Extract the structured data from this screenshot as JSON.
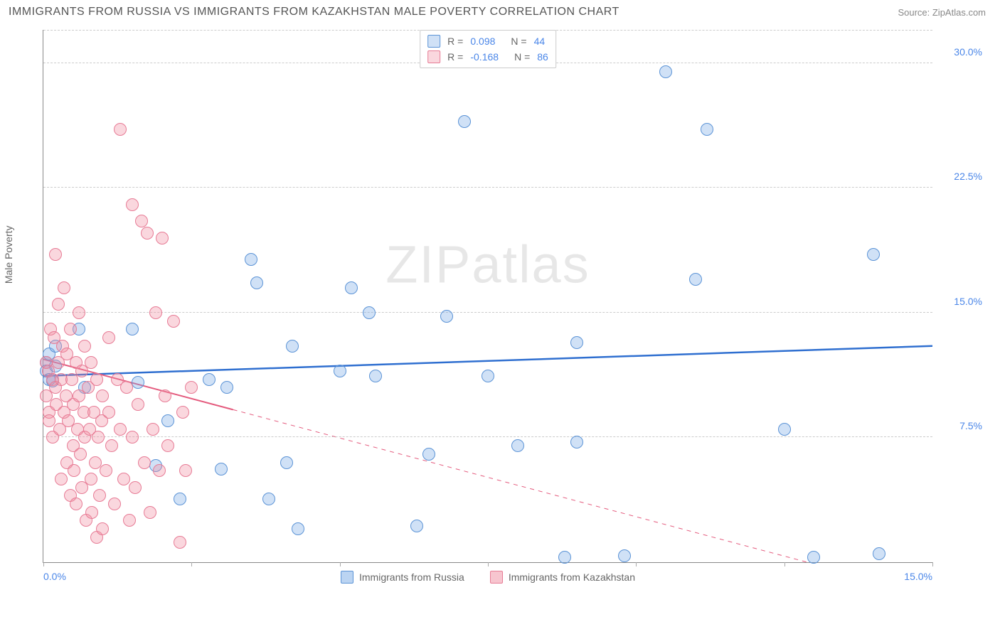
{
  "title": "IMMIGRANTS FROM RUSSIA VS IMMIGRANTS FROM KAZAKHSTAN MALE POVERTY CORRELATION CHART",
  "source": "Source: ZipAtlas.com",
  "y_axis_label": "Male Poverty",
  "watermark": "ZIPatlas",
  "chart": {
    "type": "scatter",
    "xlim": [
      0,
      15
    ],
    "ylim": [
      0,
      32
    ],
    "yticks": [
      7.5,
      15.0,
      22.5,
      30.0
    ],
    "ytick_labels": [
      "7.5%",
      "15.0%",
      "22.5%",
      "30.0%"
    ],
    "xticks": [
      0,
      2.5,
      5,
      7.5,
      10,
      12.5,
      15
    ],
    "xtick_labels_shown": {
      "0": "0.0%",
      "15": "15.0%"
    },
    "background_color": "#ffffff",
    "grid_color": "#cccccc",
    "marker_radius": 9,
    "series": [
      {
        "name": "Immigrants from Russia",
        "color_fill": "rgba(120,170,230,0.35)",
        "color_stroke": "#5b93d6",
        "r": 0.098,
        "n": 44,
        "trend": {
          "y_at_x0": 11.2,
          "y_at_xmax": 13.0,
          "color": "#2f6fd0",
          "width": 2.5,
          "dash_after_x": null
        },
        "points": [
          [
            0.05,
            12.0
          ],
          [
            0.05,
            11.5
          ],
          [
            0.1,
            12.5
          ],
          [
            0.1,
            11.0
          ],
          [
            0.15,
            10.9
          ],
          [
            0.2,
            13.0
          ],
          [
            0.2,
            11.8
          ],
          [
            0.6,
            14.0
          ],
          [
            0.7,
            10.5
          ],
          [
            1.5,
            14.0
          ],
          [
            1.6,
            10.8
          ],
          [
            1.9,
            5.8
          ],
          [
            2.1,
            8.5
          ],
          [
            2.3,
            3.8
          ],
          [
            2.8,
            11.0
          ],
          [
            3.0,
            5.6
          ],
          [
            3.1,
            10.5
          ],
          [
            3.5,
            18.2
          ],
          [
            3.6,
            16.8
          ],
          [
            3.8,
            3.8
          ],
          [
            4.1,
            6.0
          ],
          [
            4.2,
            13.0
          ],
          [
            4.3,
            2.0
          ],
          [
            5.0,
            11.5
          ],
          [
            5.2,
            16.5
          ],
          [
            5.5,
            15.0
          ],
          [
            5.6,
            11.2
          ],
          [
            6.3,
            2.2
          ],
          [
            6.5,
            6.5
          ],
          [
            6.8,
            14.8
          ],
          [
            7.1,
            26.5
          ],
          [
            7.5,
            11.2
          ],
          [
            8.0,
            7.0
          ],
          [
            8.8,
            0.3
          ],
          [
            9.0,
            7.2
          ],
          [
            9.0,
            13.2
          ],
          [
            9.8,
            0.4
          ],
          [
            10.5,
            29.5
          ],
          [
            11.0,
            17.0
          ],
          [
            11.2,
            26.0
          ],
          [
            12.5,
            8.0
          ],
          [
            13.0,
            0.3
          ],
          [
            14.0,
            18.5
          ],
          [
            14.1,
            0.5
          ]
        ]
      },
      {
        "name": "Immigrants from Kazakhstan",
        "color_fill": "rgba(240,140,160,0.35)",
        "color_stroke": "#e77b95",
        "r": -0.168,
        "n": 86,
        "trend": {
          "y_at_x0": 12.2,
          "y_at_xmax": -2.0,
          "color": "#e45a7d",
          "width": 2,
          "dash_after_x": 3.2
        },
        "points": [
          [
            0.05,
            12.0
          ],
          [
            0.05,
            10.0
          ],
          [
            0.08,
            11.5
          ],
          [
            0.1,
            9.0
          ],
          [
            0.1,
            8.5
          ],
          [
            0.12,
            14.0
          ],
          [
            0.15,
            11.0
          ],
          [
            0.15,
            7.5
          ],
          [
            0.18,
            13.5
          ],
          [
            0.2,
            18.5
          ],
          [
            0.2,
            10.5
          ],
          [
            0.22,
            9.5
          ],
          [
            0.25,
            12.0
          ],
          [
            0.25,
            15.5
          ],
          [
            0.28,
            8.0
          ],
          [
            0.3,
            11.0
          ],
          [
            0.3,
            5.0
          ],
          [
            0.32,
            13.0
          ],
          [
            0.35,
            9.0
          ],
          [
            0.35,
            16.5
          ],
          [
            0.38,
            10.0
          ],
          [
            0.4,
            6.0
          ],
          [
            0.4,
            12.5
          ],
          [
            0.42,
            8.5
          ],
          [
            0.45,
            14.0
          ],
          [
            0.45,
            4.0
          ],
          [
            0.48,
            11.0
          ],
          [
            0.5,
            9.5
          ],
          [
            0.5,
            7.0
          ],
          [
            0.52,
            5.5
          ],
          [
            0.55,
            12.0
          ],
          [
            0.55,
            3.5
          ],
          [
            0.58,
            8.0
          ],
          [
            0.6,
            10.0
          ],
          [
            0.6,
            15.0
          ],
          [
            0.62,
            6.5
          ],
          [
            0.65,
            11.5
          ],
          [
            0.65,
            4.5
          ],
          [
            0.68,
            9.0
          ],
          [
            0.7,
            13.0
          ],
          [
            0.7,
            7.5
          ],
          [
            0.72,
            2.5
          ],
          [
            0.75,
            10.5
          ],
          [
            0.78,
            8.0
          ],
          [
            0.8,
            5.0
          ],
          [
            0.8,
            12.0
          ],
          [
            0.82,
            3.0
          ],
          [
            0.85,
            9.0
          ],
          [
            0.88,
            6.0
          ],
          [
            0.9,
            11.0
          ],
          [
            0.9,
            1.5
          ],
          [
            0.92,
            7.5
          ],
          [
            0.95,
            4.0
          ],
          [
            0.98,
            8.5
          ],
          [
            1.0,
            10.0
          ],
          [
            1.0,
            2.0
          ],
          [
            1.05,
            5.5
          ],
          [
            1.1,
            9.0
          ],
          [
            1.1,
            13.5
          ],
          [
            1.15,
            7.0
          ],
          [
            1.2,
            3.5
          ],
          [
            1.25,
            11.0
          ],
          [
            1.3,
            26.0
          ],
          [
            1.3,
            8.0
          ],
          [
            1.35,
            5.0
          ],
          [
            1.4,
            10.5
          ],
          [
            1.45,
            2.5
          ],
          [
            1.5,
            21.5
          ],
          [
            1.5,
            7.5
          ],
          [
            1.55,
            4.5
          ],
          [
            1.6,
            9.5
          ],
          [
            1.65,
            20.5
          ],
          [
            1.7,
            6.0
          ],
          [
            1.75,
            19.8
          ],
          [
            1.8,
            3.0
          ],
          [
            1.85,
            8.0
          ],
          [
            1.9,
            15.0
          ],
          [
            1.95,
            5.5
          ],
          [
            2.0,
            19.5
          ],
          [
            2.05,
            10.0
          ],
          [
            2.1,
            7.0
          ],
          [
            2.2,
            14.5
          ],
          [
            2.3,
            1.2
          ],
          [
            2.35,
            9.0
          ],
          [
            2.4,
            5.5
          ],
          [
            2.5,
            10.5
          ]
        ]
      }
    ]
  },
  "legend_bottom": [
    {
      "label": "Immigrants from Russia",
      "fill": "rgba(120,170,230,0.5)",
      "stroke": "#5b93d6"
    },
    {
      "label": "Immigrants from Kazakhstan",
      "fill": "rgba(240,140,160,0.5)",
      "stroke": "#e77b95"
    }
  ]
}
